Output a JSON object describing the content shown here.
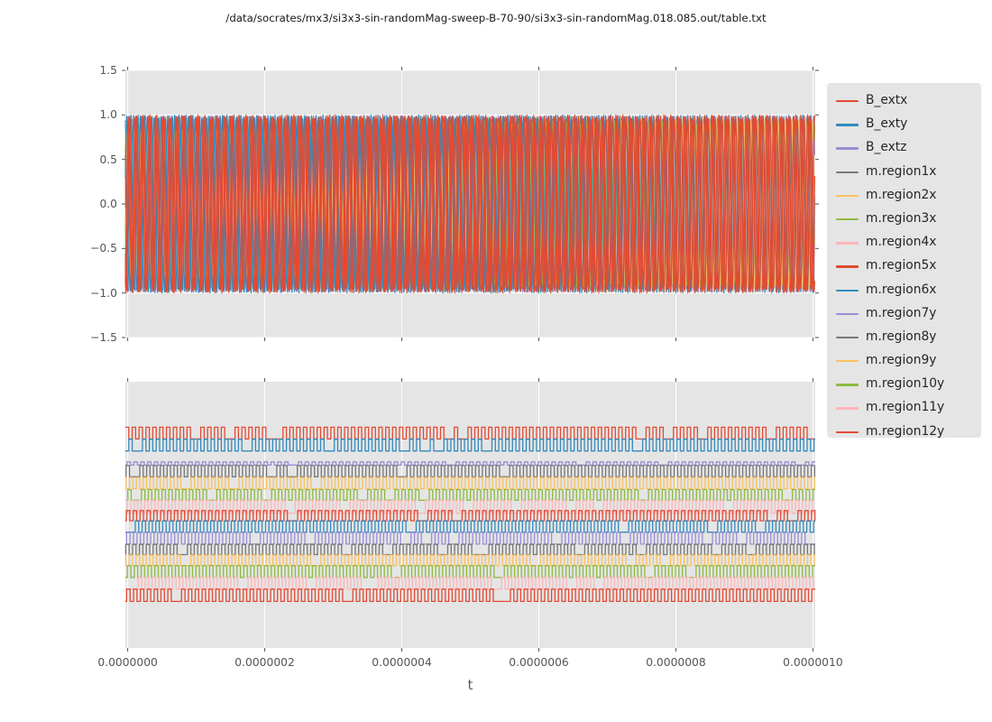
{
  "title": "/data/socrates/mx3/si3x3-sin-randomMag-sweep-B-70-90/si3x3-sin-randomMag.018.085.out/table.txt",
  "xlabel": "t",
  "style": {
    "axes_background": "#e5e5e5",
    "grid_color": "#ffffff",
    "tick_color": "#555555",
    "text_color": "#555555",
    "legend_background": "#e5e5e5",
    "legend_text_color": "#262626",
    "palette": {
      "red": "#E24A33",
      "blue": "#348ABD",
      "purple": "#988ED5",
      "gray": "#777777",
      "orange": "#FBC15E",
      "green": "#8EBA42",
      "pink": "#FFB5B8"
    }
  },
  "legend": {
    "items": [
      {
        "label": "B_extx",
        "color": "#E24A33"
      },
      {
        "label": "B_exty",
        "color": "#348ABD"
      },
      {
        "label": "B_extz",
        "color": "#988ED5"
      },
      {
        "label": "m.region1x",
        "color": "#777777"
      },
      {
        "label": "m.region2x",
        "color": "#FBC15E"
      },
      {
        "label": "m.region3x",
        "color": "#8EBA42"
      },
      {
        "label": "m.region4x",
        "color": "#FFB5B8"
      },
      {
        "label": "m.region5x",
        "color": "#E24A33"
      },
      {
        "label": "m.region6x",
        "color": "#348ABD"
      },
      {
        "label": "m.region7y",
        "color": "#988ED5"
      },
      {
        "label": "m.region8y",
        "color": "#777777"
      },
      {
        "label": "m.region9y",
        "color": "#FBC15E"
      },
      {
        "label": "m.region10y",
        "color": "#8EBA42"
      },
      {
        "label": "m.region11y",
        "color": "#FFB5B8"
      },
      {
        "label": "m.region12y",
        "color": "#E24A33"
      }
    ]
  },
  "chart_data": {
    "type": "line",
    "title": "/data/socrates/mx3/si3x3-sin-randomMag-sweep-B-70-90/si3x3-sin-randomMag.018.085.out/table.txt",
    "xlabel": "t",
    "x_range_seconds": [
      0,
      1e-06
    ],
    "x_tick_values": [
      0,
      2e-07,
      4e-07,
      6e-07,
      8e-07,
      1e-06
    ],
    "x_tick_labels": [
      "0.0000000",
      "0.0000002",
      "0.0000004",
      "0.0000006",
      "0.0000008",
      "0.0000010"
    ],
    "oscillation_period_seconds": 1e-08,
    "legend_position": "right-outside",
    "grid": "vertical-white-on-gray",
    "subplots": [
      {
        "position": "top",
        "ylim": [
          -1.5,
          1.5
        ],
        "y_tick_values": [
          1.5,
          1.0,
          0.5,
          0.0,
          -0.5,
          -1.0,
          -1.5
        ],
        "y_tick_labels": [
          "1.5",
          "1.0",
          "0.5",
          "0.0",
          "−0.5",
          "−1.0",
          "−1.5"
        ],
        "waveform": "sine",
        "series": [
          {
            "name": "B_extz",
            "color": "#988ED5",
            "amplitude": 0.99,
            "frequency_hz": 100000000.0,
            "phase_rad": 0.9
          },
          {
            "name": "m.region7y",
            "color": "#988ED5",
            "amplitude": 0.97,
            "frequency_hz": 100350000.0,
            "phase_rad": 1.3
          },
          {
            "name": "m.region1x",
            "color": "#777777",
            "amplitude": 0.985,
            "frequency_hz": 99750000.0,
            "phase_rad": 2.1
          },
          {
            "name": "m.region8y",
            "color": "#777777",
            "amplitude": 0.97,
            "frequency_hz": 100450000.0,
            "phase_rad": 4.0
          },
          {
            "name": "m.region3x",
            "color": "#8EBA42",
            "amplitude": 0.93,
            "frequency_hz": 99650000.0,
            "phase_rad": 2.8
          },
          {
            "name": "m.region10y",
            "color": "#8EBA42",
            "amplitude": 0.92,
            "frequency_hz": 100200000.0,
            "phase_rad": 5.5
          },
          {
            "name": "m.region4x",
            "color": "#FFB5B8",
            "amplitude": 0.94,
            "frequency_hz": 100550000.0,
            "phase_rad": 0.7
          },
          {
            "name": "m.region11y",
            "color": "#FFB5B8",
            "amplitude": 0.95,
            "frequency_hz": 99800000.0,
            "phase_rad": 3.4
          },
          {
            "name": "m.region2x",
            "color": "#FBC15E",
            "amplitude": 0.965,
            "frequency_hz": 100250000.0,
            "phase_rad": 1.9
          },
          {
            "name": "m.region9y",
            "color": "#FBC15E",
            "amplitude": 0.955,
            "frequency_hz": 99550000.0,
            "phase_rad": 4.8
          },
          {
            "name": "m.region6x",
            "color": "#348ABD",
            "amplitude": 0.995,
            "frequency_hz": 100150000.0,
            "phase_rad": 2.45
          },
          {
            "name": "B_exty",
            "color": "#348ABD",
            "amplitude": 1.0,
            "frequency_hz": 100000000.0,
            "phase_rad": 4.71
          },
          {
            "name": "m.region5x",
            "color": "#E24A33",
            "amplitude": 0.985,
            "frequency_hz": 99850000.0,
            "phase_rad": 5.9
          },
          {
            "name": "B_extx",
            "color": "#E24A33",
            "amplitude": 1.0,
            "frequency_hz": 100000000.0,
            "phase_rad": 0.0
          },
          {
            "name": "m.region12y",
            "color": "#E24A33",
            "amplitude": 0.99,
            "frequency_hz": 100400000.0,
            "phase_rad": 1.05
          }
        ]
      },
      {
        "position": "bottom",
        "y_tick_labels": [],
        "waveform": "square",
        "series": [
          {
            "name": "B_extx",
            "color": "#E24A33",
            "center_frac": 0.193,
            "half_amplitude_frac": 0.022,
            "period_s": 1e-08,
            "phase_frac": 0.0
          },
          {
            "name": "B_exty",
            "color": "#348ABD",
            "center_frac": 0.238,
            "half_amplitude_frac": 0.022,
            "period_s": 1e-08,
            "phase_frac": 0.5
          },
          {
            "name": "B_extz",
            "color": "#988ED5",
            "center_frac": 0.307,
            "half_amplitude_frac": 0.006,
            "period_s": 1e-08,
            "phase_frac": 0.25
          },
          {
            "name": "m.region1x",
            "color": "#777777",
            "center_frac": 0.336,
            "half_amplitude_frac": 0.021,
            "period_s": 1e-08,
            "phase_frac": 0.1
          },
          {
            "name": "m.region2x",
            "color": "#FBC15E",
            "center_frac": 0.381,
            "half_amplitude_frac": 0.021,
            "period_s": 1e-08,
            "phase_frac": 0.6
          },
          {
            "name": "m.region3x",
            "color": "#8EBA42",
            "center_frac": 0.425,
            "half_amplitude_frac": 0.02,
            "period_s": 1e-08,
            "phase_frac": 0.35
          },
          {
            "name": "m.region4x",
            "color": "#FFB5B8",
            "center_frac": 0.47,
            "half_amplitude_frac": 0.024,
            "period_s": 1e-08,
            "phase_frac": 0.8
          },
          {
            "name": "m.region5x",
            "color": "#E24A33",
            "center_frac": 0.503,
            "half_amplitude_frac": 0.019,
            "period_s": 1e-08,
            "phase_frac": 0.15
          },
          {
            "name": "m.region6x",
            "color": "#348ABD",
            "center_frac": 0.544,
            "half_amplitude_frac": 0.021,
            "period_s": 1e-08,
            "phase_frac": 0.45
          },
          {
            "name": "m.region7y",
            "color": "#988ED5",
            "center_frac": 0.588,
            "half_amplitude_frac": 0.022,
            "period_s": 1e-08,
            "phase_frac": 0.7
          },
          {
            "name": "m.region8y",
            "color": "#777777",
            "center_frac": 0.63,
            "half_amplitude_frac": 0.019,
            "period_s": 1e-08,
            "phase_frac": 0.05
          },
          {
            "name": "m.region9y",
            "color": "#FBC15E",
            "center_frac": 0.671,
            "half_amplitude_frac": 0.02,
            "period_s": 1e-08,
            "phase_frac": 0.55
          },
          {
            "name": "m.region10y",
            "color": "#8EBA42",
            "center_frac": 0.713,
            "half_amplitude_frac": 0.022,
            "period_s": 1e-08,
            "phase_frac": 0.3
          },
          {
            "name": "m.region11y",
            "color": "#FFB5B8",
            "center_frac": 0.757,
            "half_amplitude_frac": 0.022,
            "period_s": 1e-08,
            "phase_frac": 0.9
          },
          {
            "name": "m.region12y",
            "color": "#E24A33",
            "center_frac": 0.802,
            "half_amplitude_frac": 0.023,
            "period_s": 1e-08,
            "phase_frac": 0.2
          }
        ]
      }
    ]
  }
}
